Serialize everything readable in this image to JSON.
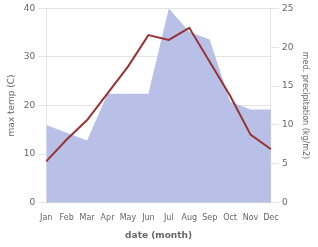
{
  "chart_data": {
    "type": "line",
    "categories": [
      "Jan",
      "Feb",
      "Mar",
      "Apr",
      "May",
      "Jun",
      "Jul",
      "Aug",
      "Sep",
      "Oct",
      "Nov",
      "Dec"
    ],
    "series": [
      {
        "type": "area",
        "color": "#b8c0e8",
        "axis": "y2",
        "values": [
          10.0,
          9.0,
          8.0,
          14.0,
          14.0,
          14.0,
          25.0,
          22.0,
          21.0,
          13.0,
          12.0,
          12.0
        ]
      },
      {
        "type": "line",
        "color": "#993333",
        "values": [
          8.5,
          13.0,
          17.0,
          22.5,
          28.0,
          34.5,
          33.5,
          36.0,
          29.0,
          22.0,
          14.0,
          11.0
        ]
      }
    ],
    "xlabel": "date (month)",
    "ylabel": "max temp (C)",
    "y2label": "med. precipitation (kg/m2)",
    "ylim": [
      0,
      40
    ],
    "yticks": [
      0,
      10,
      20,
      30,
      40
    ],
    "y2lim": [
      0,
      25
    ],
    "y2ticks": [
      0,
      5,
      10,
      15,
      20,
      25
    ],
    "grid": true
  }
}
